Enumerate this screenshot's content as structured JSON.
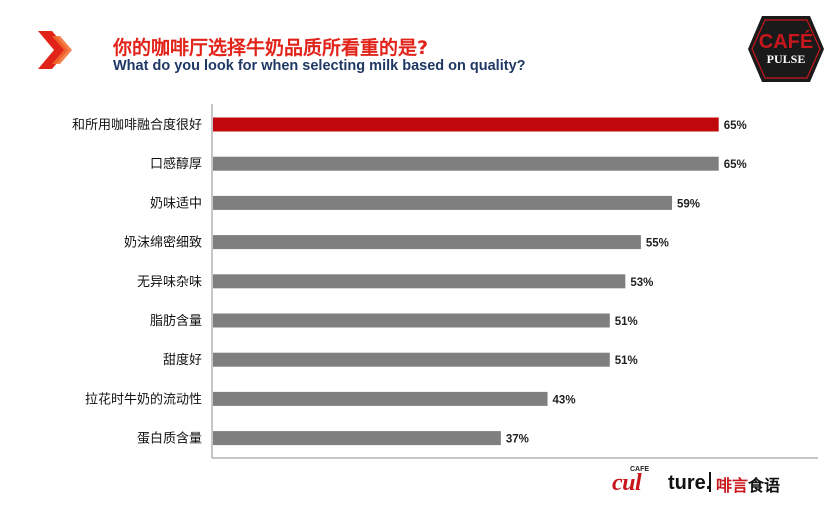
{
  "header": {
    "title_cn": "你的咖啡厅选择牛奶品质所看重的是?",
    "title_en": "What do you look for when selecting milk based on quality?",
    "icon": "double-chevron-right-icon"
  },
  "brand": {
    "top_logo_line1": "CAFÉ",
    "top_logo_line2": "PULSE",
    "footer_cafe": "CAFE",
    "footer_cul": "cul",
    "footer_ture": "ture.",
    "footer_cn_red": "啡言",
    "footer_cn_black": "食语"
  },
  "colors": {
    "title_red": "#e2231a",
    "title_navy": "#1f3864",
    "highlight_bar": "#c0070b",
    "bar": "#7f7f7f",
    "axis": "#8c8c8c"
  },
  "chart_data": {
    "type": "bar",
    "orientation": "horizontal",
    "title": "你的咖啡厅选择牛奶品质所看重的是?",
    "subtitle": "What do you look for when selecting milk based on quality?",
    "xlabel": "",
    "ylabel": "",
    "xlim": [
      0,
      100
    ],
    "grid": false,
    "legend": "none",
    "categories": [
      "和所用咖啡融合度很好",
      "口感醇厚",
      "奶味适中",
      "奶沫绵密细致",
      "无异味杂味",
      "脂肪含量",
      "甜度好",
      "拉花时牛奶的流动性",
      "蛋白质含量"
    ],
    "values": [
      65,
      65,
      59,
      55,
      53,
      51,
      51,
      43,
      37
    ],
    "value_labels": [
      "65%",
      "65%",
      "59%",
      "55%",
      "53%",
      "51%",
      "51%",
      "43%",
      "37%"
    ],
    "highlight_index": 0
  }
}
